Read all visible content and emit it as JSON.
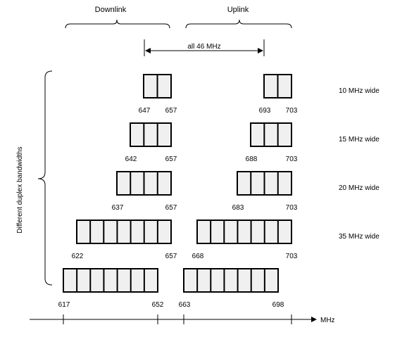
{
  "headers": {
    "downlink": "Downlink",
    "uplink": "Uplink",
    "span": "all 46 MHz"
  },
  "side_label": "Different duplex bandwidths",
  "axis_unit": "MHz",
  "rows": [
    {
      "width_label": "10 MHz wide",
      "dl": {
        "lo": "647",
        "hi": "657",
        "blocks": 2
      },
      "ul": {
        "lo": "693",
        "hi": "703",
        "blocks": 2
      }
    },
    {
      "width_label": "15 MHz wide",
      "dl": {
        "lo": "642",
        "hi": "657",
        "blocks": 3
      },
      "ul": {
        "lo": "688",
        "hi": "703",
        "blocks": 3
      }
    },
    {
      "width_label": "20 MHz wide",
      "dl": {
        "lo": "637",
        "hi": "657",
        "blocks": 4
      },
      "ul": {
        "lo": "683",
        "hi": "703",
        "blocks": 4
      }
    },
    {
      "width_label": "35 MHz wide",
      "dl": {
        "lo": "622",
        "hi": "657",
        "blocks": 7
      },
      "ul": {
        "lo": "668",
        "hi": "703",
        "blocks": 7
      }
    },
    {
      "width_label": "",
      "dl": {
        "lo": "617",
        "hi": "652",
        "blocks": 7
      },
      "ul": {
        "lo": "663",
        "hi": "698",
        "blocks": 7
      }
    }
  ]
}
